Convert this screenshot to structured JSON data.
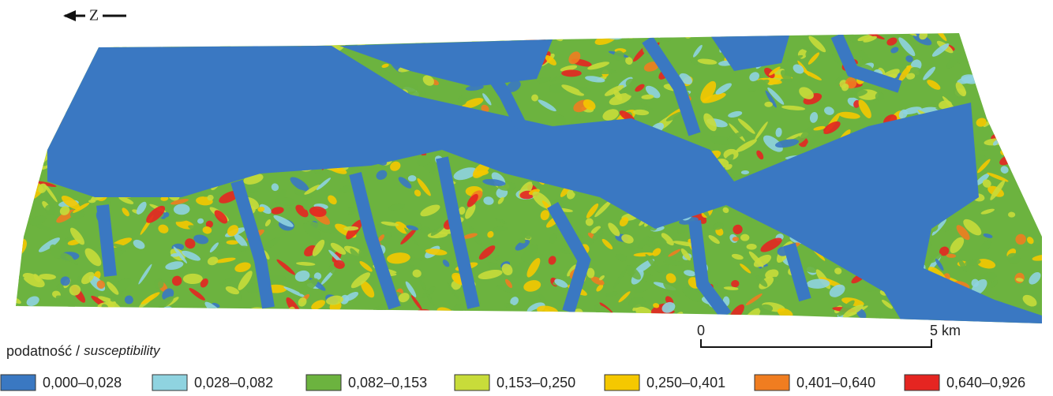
{
  "north_label": "Z",
  "scale_bar": {
    "start_label": "0",
    "end_label": "5 km"
  },
  "legend": {
    "title": "podatność",
    "separator": "/",
    "title_en": "susceptibility",
    "items": [
      {
        "label": "0,000–0,028",
        "color": "#3a78c2"
      },
      {
        "label": "0,028–0,082",
        "color": "#8fd3e0"
      },
      {
        "label": "0,082–0,153",
        "color": "#6cb33f"
      },
      {
        "label": "0,153–0,250",
        "color": "#c8dc3a"
      },
      {
        "label": "0,250–0,401",
        "color": "#f5c800"
      },
      {
        "label": "0,401–0,640",
        "color": "#f07d20"
      },
      {
        "label": "0,640–0,926",
        "color": "#e52521"
      }
    ]
  }
}
